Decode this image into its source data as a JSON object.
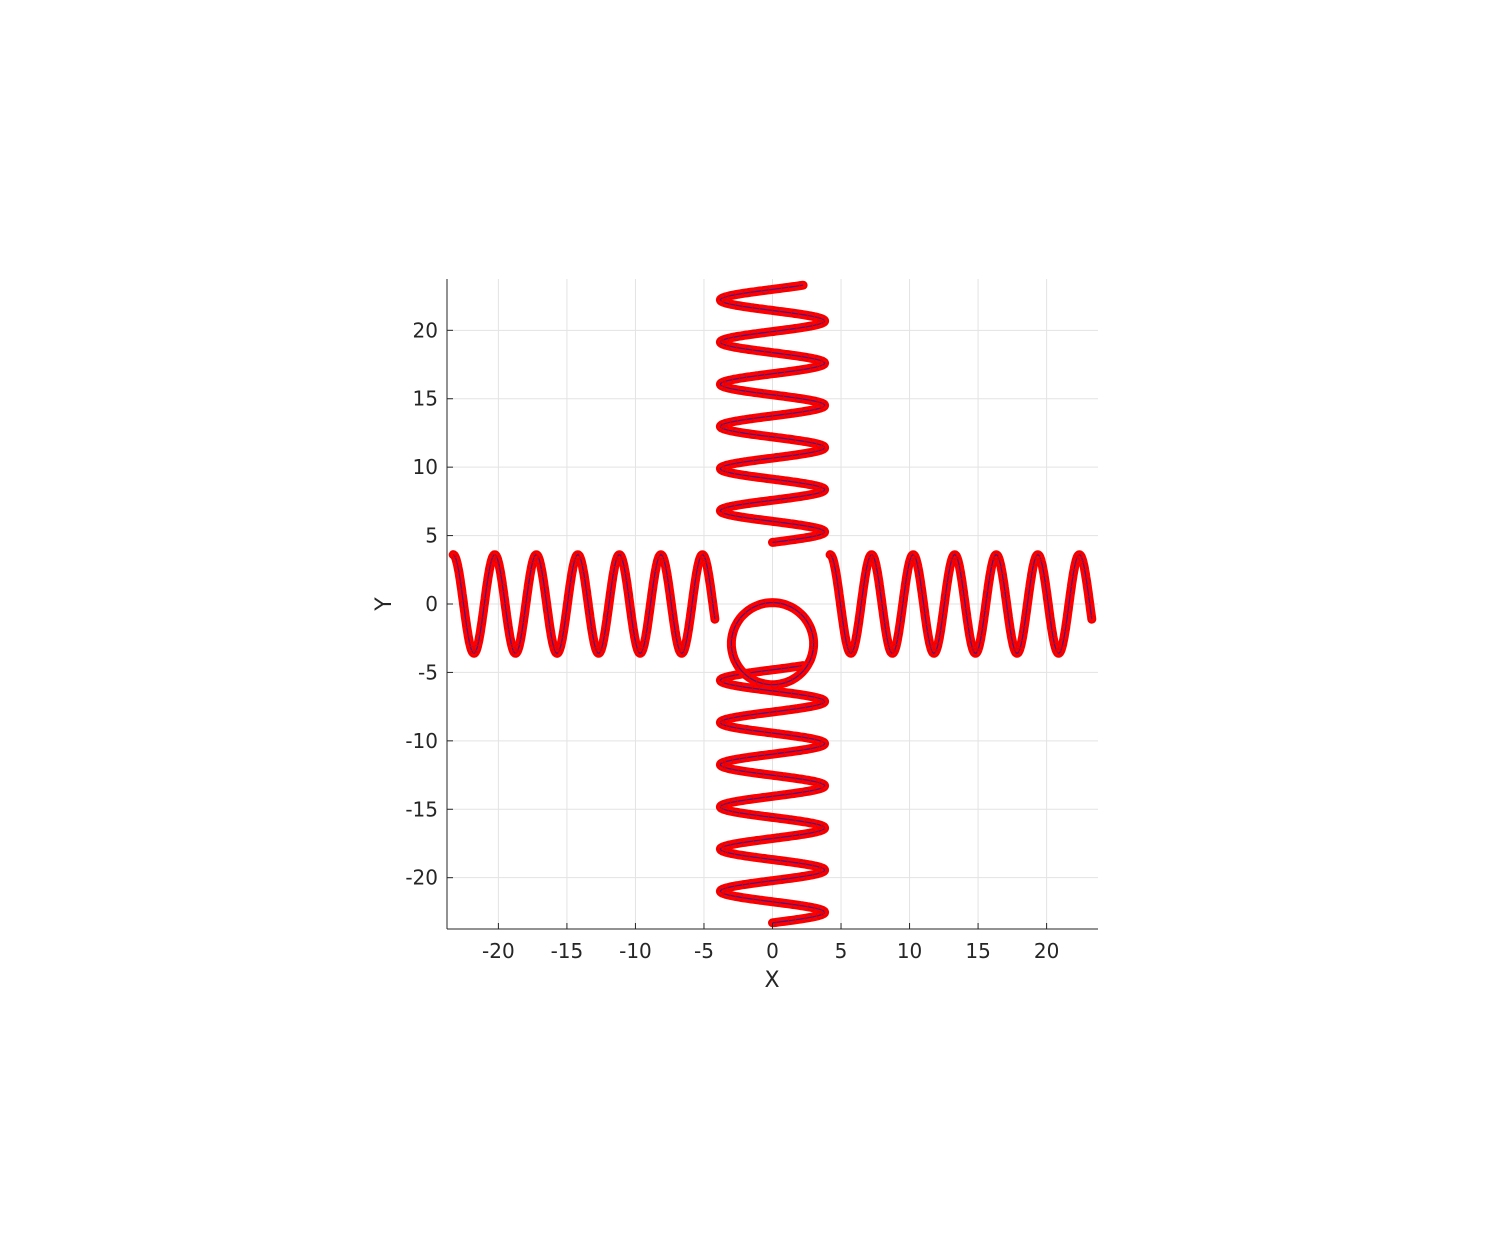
{
  "chart_data": {
    "type": "line",
    "title": "",
    "xlabel": "X",
    "ylabel": "Y",
    "xlim": [
      -23.75,
      23.75
    ],
    "ylim": [
      -23.75,
      23.75
    ],
    "grid": true,
    "legend": "none",
    "x_ticks": [
      -20,
      -15,
      -10,
      -5,
      0,
      5,
      10,
      15,
      20
    ],
    "x_tick_labels": [
      "-20",
      "-15",
      "-10",
      "-5",
      "0",
      "5",
      "10",
      "15",
      "20"
    ],
    "y_ticks": [
      -20,
      -15,
      -10,
      -5,
      0,
      5,
      10,
      15,
      20
    ],
    "y_tick_labels": [
      "-20",
      "-15",
      "-10",
      "-5",
      "0",
      "5",
      "10",
      "15",
      "20"
    ],
    "colors": {
      "line": "#1a1aa8",
      "marker": "#ff0000",
      "grid": "#e3e3e3",
      "axis": "#262626"
    },
    "series": [
      {
        "kind": "coil",
        "axis": "x",
        "from": 4.2,
        "to": 23.3,
        "turns": 6.3,
        "amplitude": 3.6,
        "center": 0,
        "phase": 1.5708
      },
      {
        "kind": "coil",
        "axis": "x",
        "from": -23.3,
        "to": -4.2,
        "turns": 6.3,
        "amplitude": 3.6,
        "center": 0,
        "phase": 1.5708
      },
      {
        "kind": "coil",
        "axis": "y",
        "from": 4.5,
        "to": 23.3,
        "turns": 6.1,
        "amplitude": 3.8,
        "center": 0,
        "phase": 0
      },
      {
        "kind": "coil",
        "axis": "y",
        "from": -23.3,
        "to": -4.5,
        "turns": 6.1,
        "amplitude": 3.8,
        "center": 0,
        "phase": 0
      },
      {
        "kind": "circle",
        "cx": 0,
        "cy": -2.9,
        "r": 3.0
      }
    ]
  }
}
